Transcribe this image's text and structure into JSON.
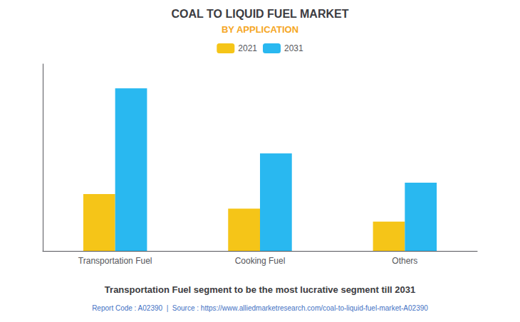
{
  "chart_data": {
    "type": "bar",
    "title": "COAL TO LIQUID FUEL MARKET",
    "subtitle": "BY APPLICATION",
    "categories": [
      "Transportation Fuel",
      "Cooking Fuel",
      "Others"
    ],
    "series": [
      {
        "name": "2021",
        "color": "#F5C518",
        "values": [
          35,
          26,
          18
        ]
      },
      {
        "name": "2031",
        "color": "#29B8F0",
        "values": [
          100,
          60,
          42
        ]
      }
    ],
    "ylim": [
      0,
      115
    ],
    "yticks": [],
    "grid": false,
    "legend": "top",
    "tick_labels": "x",
    "annotations": [
      "Transportation Fuel segment to be the most lucrative segment till 2031",
      "Report Code : A02390  |  Source : https://www.alliedmarketresearch.com/coal-to-liquid-fuel-market-A02390"
    ]
  }
}
